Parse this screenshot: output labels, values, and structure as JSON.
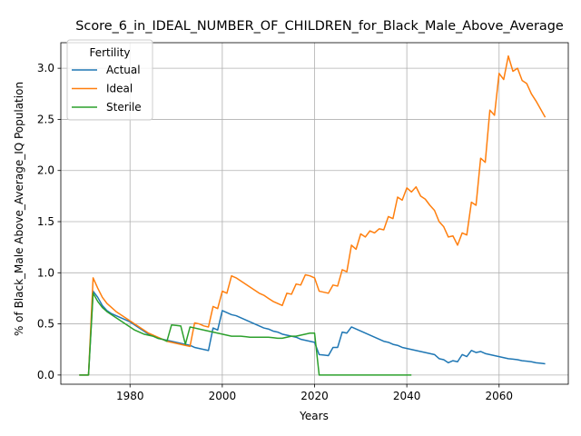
{
  "chart_data": {
    "type": "line",
    "title": "Score_6_in_IDEAL_NUMBER_OF_CHILDREN_for_Black_Male_Above_Average",
    "xlabel": "Years",
    "ylabel": "% of Black_Male Above_Average_IQ Population",
    "xlim": [
      1965,
      2075
    ],
    "ylim": [
      -0.09,
      3.25
    ],
    "xticks": [
      1980,
      2000,
      2020,
      2040,
      2060
    ],
    "yticks": [
      0.0,
      0.5,
      1.0,
      1.5,
      2.0,
      2.5,
      3.0
    ],
    "grid": true,
    "legend": {
      "title": "Fertility",
      "position": "top-left"
    },
    "series": [
      {
        "name": "Actual",
        "color": "#1f77b4",
        "points": [
          [
            1969,
            0
          ],
          [
            1971,
            0
          ],
          [
            1972,
            0.82
          ],
          [
            1973,
            0.76
          ],
          [
            1974,
            0.68
          ],
          [
            1975,
            0.63
          ],
          [
            1976,
            0.6
          ],
          [
            1977,
            0.58
          ],
          [
            1978,
            0.56
          ],
          [
            1979,
            0.54
          ],
          [
            1980,
            0.52
          ],
          [
            1981,
            0.49
          ],
          [
            1982,
            0.46
          ],
          [
            1983,
            0.43
          ],
          [
            1984,
            0.4
          ],
          [
            1985,
            0.38
          ],
          [
            1986,
            0.36
          ],
          [
            1987,
            0.35
          ],
          [
            1988,
            0.34
          ],
          [
            1989,
            0.33
          ],
          [
            1990,
            0.32
          ],
          [
            1991,
            0.31
          ],
          [
            1992,
            0.3
          ],
          [
            1993,
            0.29
          ],
          [
            1994,
            0.27
          ],
          [
            1995,
            0.26
          ],
          [
            1996,
            0.25
          ],
          [
            1997,
            0.24
          ],
          [
            1998,
            0.46
          ],
          [
            1999,
            0.44
          ],
          [
            2000,
            0.63
          ],
          [
            2001,
            0.61
          ],
          [
            2002,
            0.59
          ],
          [
            2003,
            0.58
          ],
          [
            2004,
            0.56
          ],
          [
            2005,
            0.54
          ],
          [
            2006,
            0.52
          ],
          [
            2007,
            0.5
          ],
          [
            2008,
            0.48
          ],
          [
            2009,
            0.46
          ],
          [
            2010,
            0.45
          ],
          [
            2011,
            0.43
          ],
          [
            2012,
            0.42
          ],
          [
            2013,
            0.4
          ],
          [
            2014,
            0.39
          ],
          [
            2015,
            0.38
          ],
          [
            2016,
            0.37
          ],
          [
            2017,
            0.35
          ],
          [
            2018,
            0.34
          ],
          [
            2019,
            0.33
          ],
          [
            2020,
            0.32
          ],
          [
            2021,
            0.2
          ],
          [
            2022,
            0.195
          ],
          [
            2023,
            0.19
          ],
          [
            2024,
            0.27
          ],
          [
            2025,
            0.27
          ],
          [
            2026,
            0.42
          ],
          [
            2027,
            0.41
          ],
          [
            2028,
            0.47
          ],
          [
            2029,
            0.45
          ],
          [
            2030,
            0.43
          ],
          [
            2031,
            0.41
          ],
          [
            2032,
            0.39
          ],
          [
            2033,
            0.37
          ],
          [
            2034,
            0.35
          ],
          [
            2035,
            0.33
          ],
          [
            2036,
            0.32
          ],
          [
            2037,
            0.3
          ],
          [
            2038,
            0.29
          ],
          [
            2039,
            0.27
          ],
          [
            2040,
            0.26
          ],
          [
            2041,
            0.25
          ],
          [
            2042,
            0.24
          ],
          [
            2043,
            0.23
          ],
          [
            2044,
            0.22
          ],
          [
            2045,
            0.21
          ],
          [
            2046,
            0.2
          ],
          [
            2047,
            0.16
          ],
          [
            2048,
            0.15
          ],
          [
            2049,
            0.12
          ],
          [
            2050,
            0.14
          ],
          [
            2051,
            0.13
          ],
          [
            2052,
            0.2
          ],
          [
            2053,
            0.18
          ],
          [
            2054,
            0.24
          ],
          [
            2055,
            0.22
          ],
          [
            2056,
            0.23
          ],
          [
            2057,
            0.21
          ],
          [
            2058,
            0.2
          ],
          [
            2059,
            0.19
          ],
          [
            2060,
            0.18
          ],
          [
            2061,
            0.17
          ],
          [
            2062,
            0.16
          ],
          [
            2063,
            0.155
          ],
          [
            2064,
            0.15
          ],
          [
            2065,
            0.14
          ],
          [
            2066,
            0.135
          ],
          [
            2067,
            0.13
          ],
          [
            2068,
            0.12
          ],
          [
            2069,
            0.115
          ],
          [
            2070,
            0.11
          ]
        ]
      },
      {
        "name": "Ideal",
        "color": "#ff7f0e",
        "points": [
          [
            1969,
            0
          ],
          [
            1971,
            0
          ],
          [
            1972,
            0.95
          ],
          [
            1973,
            0.85
          ],
          [
            1974,
            0.76
          ],
          [
            1975,
            0.7
          ],
          [
            1976,
            0.66
          ],
          [
            1977,
            0.62
          ],
          [
            1978,
            0.59
          ],
          [
            1979,
            0.56
          ],
          [
            1980,
            0.53
          ],
          [
            1981,
            0.5
          ],
          [
            1982,
            0.47
          ],
          [
            1983,
            0.44
          ],
          [
            1984,
            0.41
          ],
          [
            1985,
            0.39
          ],
          [
            1986,
            0.37
          ],
          [
            1987,
            0.35
          ],
          [
            1988,
            0.33
          ],
          [
            1989,
            0.32
          ],
          [
            1990,
            0.31
          ],
          [
            1991,
            0.3
          ],
          [
            1992,
            0.29
          ],
          [
            1993,
            0.28
          ],
          [
            1994,
            0.51
          ],
          [
            1995,
            0.5
          ],
          [
            1996,
            0.48
          ],
          [
            1997,
            0.47
          ],
          [
            1998,
            0.67
          ],
          [
            1999,
            0.65
          ],
          [
            2000,
            0.82
          ],
          [
            2001,
            0.8
          ],
          [
            2002,
            0.97
          ],
          [
            2003,
            0.95
          ],
          [
            2004,
            0.92
          ],
          [
            2005,
            0.89
          ],
          [
            2006,
            0.86
          ],
          [
            2007,
            0.83
          ],
          [
            2008,
            0.8
          ],
          [
            2009,
            0.78
          ],
          [
            2010,
            0.75
          ],
          [
            2011,
            0.72
          ],
          [
            2012,
            0.7
          ],
          [
            2013,
            0.68
          ],
          [
            2014,
            0.8
          ],
          [
            2015,
            0.79
          ],
          [
            2016,
            0.89
          ],
          [
            2017,
            0.88
          ],
          [
            2018,
            0.98
          ],
          [
            2019,
            0.97
          ],
          [
            2020,
            0.95
          ],
          [
            2021,
            0.82
          ],
          [
            2022,
            0.81
          ],
          [
            2023,
            0.8
          ],
          [
            2024,
            0.88
          ],
          [
            2025,
            0.87
          ],
          [
            2026,
            1.03
          ],
          [
            2027,
            1.01
          ],
          [
            2028,
            1.27
          ],
          [
            2029,
            1.23
          ],
          [
            2030,
            1.38
          ],
          [
            2031,
            1.35
          ],
          [
            2032,
            1.41
          ],
          [
            2033,
            1.39
          ],
          [
            2034,
            1.43
          ],
          [
            2035,
            1.42
          ],
          [
            2036,
            1.55
          ],
          [
            2037,
            1.53
          ],
          [
            2038,
            1.74
          ],
          [
            2039,
            1.71
          ],
          [
            2040,
            1.83
          ],
          [
            2041,
            1.79
          ],
          [
            2042,
            1.84
          ],
          [
            2043,
            1.75
          ],
          [
            2044,
            1.72
          ],
          [
            2045,
            1.66
          ],
          [
            2046,
            1.61
          ],
          [
            2047,
            1.5
          ],
          [
            2048,
            1.45
          ],
          [
            2049,
            1.35
          ],
          [
            2050,
            1.36
          ],
          [
            2051,
            1.27
          ],
          [
            2052,
            1.39
          ],
          [
            2053,
            1.37
          ],
          [
            2054,
            1.69
          ],
          [
            2055,
            1.66
          ],
          [
            2056,
            2.12
          ],
          [
            2057,
            2.08
          ],
          [
            2058,
            2.59
          ],
          [
            2059,
            2.54
          ],
          [
            2060,
            2.95
          ],
          [
            2061,
            2.89
          ],
          [
            2062,
            3.12
          ],
          [
            2063,
            2.97
          ],
          [
            2064,
            3.0
          ],
          [
            2065,
            2.88
          ],
          [
            2066,
            2.85
          ],
          [
            2067,
            2.75
          ],
          [
            2068,
            2.68
          ],
          [
            2069,
            2.6
          ],
          [
            2070,
            2.52
          ]
        ]
      },
      {
        "name": "Sterile",
        "color": "#2ca02c",
        "points": [
          [
            1969,
            0
          ],
          [
            1971,
            0
          ],
          [
            1972,
            0.8
          ],
          [
            1973,
            0.72
          ],
          [
            1974,
            0.66
          ],
          [
            1975,
            0.62
          ],
          [
            1976,
            0.59
          ],
          [
            1977,
            0.56
          ],
          [
            1978,
            0.53
          ],
          [
            1979,
            0.5
          ],
          [
            1980,
            0.47
          ],
          [
            1981,
            0.44
          ],
          [
            1982,
            0.42
          ],
          [
            1983,
            0.4
          ],
          [
            1984,
            0.39
          ],
          [
            1985,
            0.38
          ],
          [
            1986,
            0.36
          ],
          [
            1987,
            0.35
          ],
          [
            1988,
            0.33
          ],
          [
            1989,
            0.49
          ],
          [
            1990,
            0.485
          ],
          [
            1991,
            0.48
          ],
          [
            1992,
            0.3
          ],
          [
            1993,
            0.47
          ],
          [
            1994,
            0.46
          ],
          [
            1995,
            0.45
          ],
          [
            1996,
            0.44
          ],
          [
            1997,
            0.43
          ],
          [
            1998,
            0.42
          ],
          [
            1999,
            0.41
          ],
          [
            2000,
            0.4
          ],
          [
            2001,
            0.39
          ],
          [
            2002,
            0.38
          ],
          [
            2003,
            0.38
          ],
          [
            2004,
            0.38
          ],
          [
            2005,
            0.375
          ],
          [
            2006,
            0.37
          ],
          [
            2007,
            0.37
          ],
          [
            2008,
            0.37
          ],
          [
            2009,
            0.37
          ],
          [
            2010,
            0.37
          ],
          [
            2011,
            0.365
          ],
          [
            2012,
            0.36
          ],
          [
            2013,
            0.36
          ],
          [
            2014,
            0.37
          ],
          [
            2015,
            0.38
          ],
          [
            2016,
            0.38
          ],
          [
            2017,
            0.39
          ],
          [
            2018,
            0.4
          ],
          [
            2019,
            0.41
          ],
          [
            2020,
            0.41
          ],
          [
            2021,
            0.0
          ],
          [
            2022,
            0
          ],
          [
            2025,
            0
          ],
          [
            2030,
            0
          ],
          [
            2035,
            0
          ],
          [
            2041,
            0
          ]
        ]
      }
    ]
  }
}
